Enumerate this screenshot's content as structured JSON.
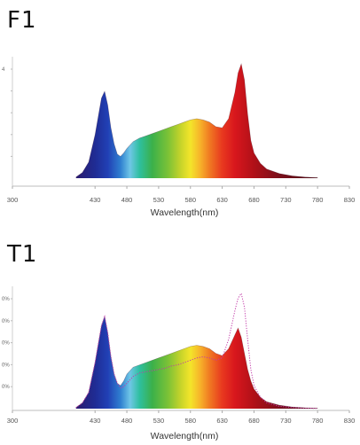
{
  "panels": [
    {
      "title": "F1"
    },
    {
      "title": "T1"
    }
  ],
  "chart_data": [
    {
      "type": "area",
      "title": "F1",
      "xlabel": "Wavelength(nm)",
      "ylabel": "",
      "xlim": [
        300,
        830
      ],
      "ylim": [
        0,
        1
      ],
      "x_ticks": [
        300,
        430,
        480,
        530,
        580,
        630,
        680,
        730,
        780,
        830
      ],
      "y_tick_labels": [
        "4",
        "",
        "",
        "",
        ""
      ],
      "fill": "visible-spectrum gradient",
      "series": [
        {
          "x": [
            400,
            410,
            420,
            430,
            440,
            445,
            450,
            455,
            460,
            465,
            470,
            475,
            480,
            490,
            500,
            510,
            520,
            530,
            540,
            550,
            560,
            570,
            580,
            590,
            600,
            610,
            620,
            630,
            640,
            650,
            655,
            660,
            665,
            670,
            675,
            680,
            690,
            700,
            720,
            740,
            760,
            780
          ],
          "values": [
            0.01,
            0.05,
            0.14,
            0.38,
            0.7,
            0.76,
            0.64,
            0.44,
            0.3,
            0.21,
            0.19,
            0.22,
            0.26,
            0.32,
            0.35,
            0.37,
            0.39,
            0.41,
            0.43,
            0.45,
            0.47,
            0.49,
            0.51,
            0.52,
            0.51,
            0.49,
            0.45,
            0.44,
            0.52,
            0.75,
            0.92,
            1.0,
            0.86,
            0.56,
            0.33,
            0.22,
            0.13,
            0.08,
            0.04,
            0.02,
            0.01,
            0.005
          ]
        }
      ]
    },
    {
      "type": "area",
      "title": "T1",
      "xlabel": "Wavelength(nm)",
      "ylabel": "",
      "xlim": [
        300,
        830
      ],
      "ylim": [
        0,
        1
      ],
      "x_ticks": [
        300,
        430,
        480,
        530,
        580,
        630,
        680,
        730,
        780,
        830
      ],
      "y_tick_labels": [
        "0%",
        "0%",
        "0%",
        "0%",
        "0%"
      ],
      "fill": "visible-spectrum gradient",
      "series": [
        {
          "x": [
            400,
            410,
            420,
            430,
            440,
            445,
            450,
            455,
            460,
            465,
            470,
            475,
            480,
            490,
            500,
            510,
            520,
            530,
            540,
            550,
            560,
            570,
            580,
            590,
            600,
            610,
            620,
            630,
            640,
            650,
            655,
            660,
            665,
            670,
            675,
            680,
            690,
            700,
            720,
            740,
            760,
            780
          ],
          "values": [
            0.01,
            0.05,
            0.14,
            0.4,
            0.72,
            0.8,
            0.66,
            0.45,
            0.3,
            0.22,
            0.2,
            0.24,
            0.3,
            0.36,
            0.38,
            0.4,
            0.42,
            0.44,
            0.46,
            0.48,
            0.5,
            0.52,
            0.54,
            0.55,
            0.54,
            0.52,
            0.48,
            0.46,
            0.52,
            0.64,
            0.7,
            0.62,
            0.48,
            0.34,
            0.24,
            0.17,
            0.1,
            0.06,
            0.03,
            0.015,
            0.008,
            0.004
          ]
        },
        {
          "style": "dotted-magenta",
          "x": [
            400,
            410,
            420,
            430,
            440,
            445,
            450,
            455,
            460,
            465,
            470,
            475,
            480,
            490,
            500,
            510,
            520,
            530,
            540,
            550,
            560,
            570,
            580,
            590,
            600,
            610,
            620,
            630,
            640,
            650,
            655,
            660,
            665,
            670,
            675,
            680,
            690,
            700,
            720,
            740,
            760,
            780
          ],
          "values": [
            0.01,
            0.05,
            0.14,
            0.4,
            0.72,
            0.8,
            0.66,
            0.45,
            0.3,
            0.22,
            0.18,
            0.19,
            0.22,
            0.28,
            0.31,
            0.32,
            0.33,
            0.34,
            0.35,
            0.37,
            0.38,
            0.4,
            0.42,
            0.44,
            0.45,
            0.44,
            0.42,
            0.44,
            0.6,
            0.85,
            0.96,
            1.0,
            0.88,
            0.6,
            0.34,
            0.2,
            0.1,
            0.05,
            0.02,
            0.01,
            0.005,
            0.002
          ]
        }
      ]
    }
  ]
}
